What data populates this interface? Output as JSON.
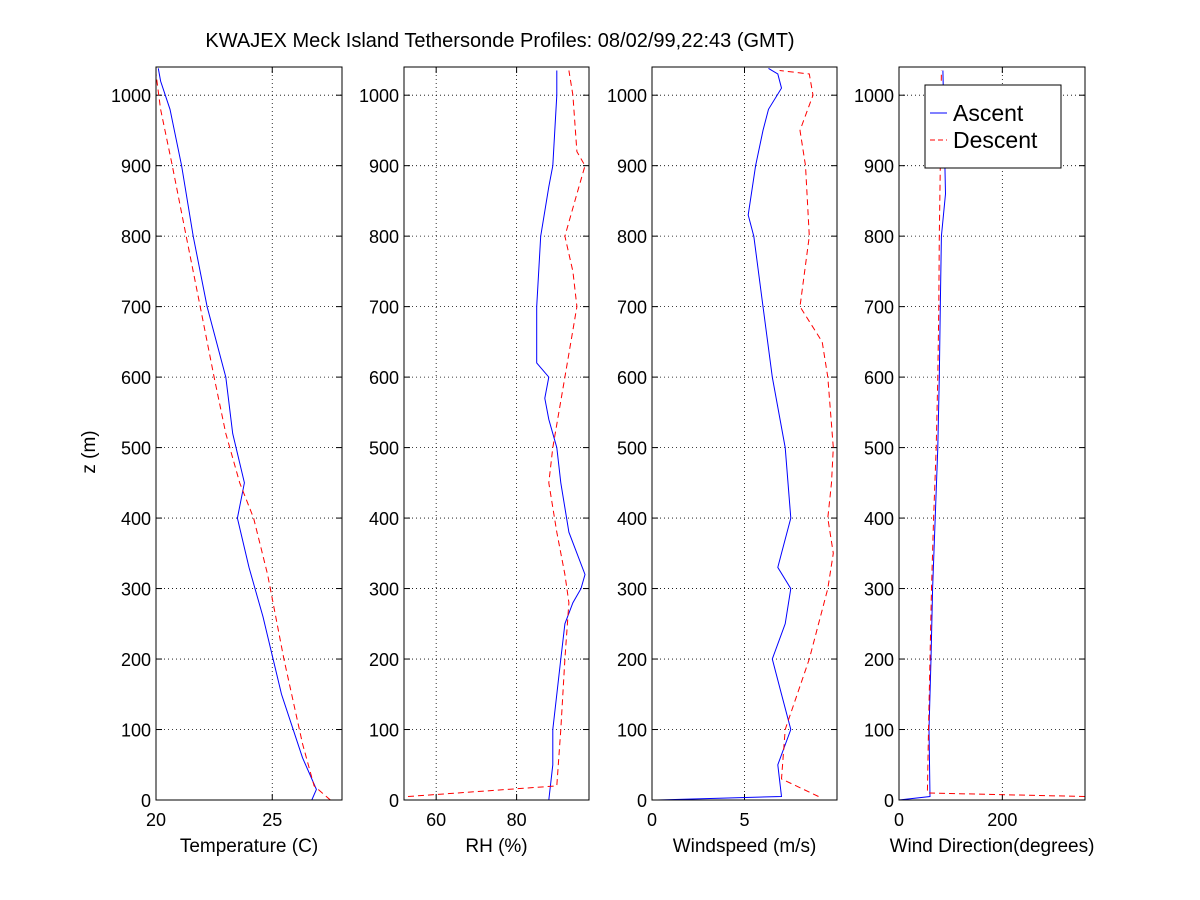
{
  "figure": {
    "title": "KWAJEX Meck Island Tethersonde Profiles: 08/02/99,22:43 (GMT)",
    "ylabel": "z (m)"
  },
  "colors": {
    "ascent": "#0000ff",
    "descent": "#ff0000",
    "axes": "#000000",
    "grid": "#000000"
  },
  "chart_data": [
    {
      "type": "line",
      "xlabel": "Temperature (C)",
      "xlim": [
        20,
        28
      ],
      "ylim": [
        0,
        1040
      ],
      "xticks": [
        20,
        25
      ],
      "yticks": [
        0,
        100,
        200,
        300,
        400,
        500,
        600,
        700,
        800,
        900,
        1000
      ],
      "grid": true,
      "series": [
        {
          "name": "Ascent",
          "style": "solid",
          "x": [
            26.7,
            26.9,
            26.3,
            25.4,
            24.6,
            24.0,
            23.5,
            23.8,
            23.3,
            23.0,
            22.2,
            21.6,
            21.1,
            20.6,
            20.2,
            20.1
          ],
          "y": [
            0,
            15,
            60,
            150,
            260,
            330,
            400,
            450,
            520,
            600,
            700,
            800,
            900,
            980,
            1020,
            1038
          ]
        },
        {
          "name": "Descent",
          "style": "dashed",
          "x": [
            27.5,
            26.8,
            26.3,
            25.5,
            24.8,
            24.2,
            23.6,
            23.0,
            22.5,
            21.9,
            21.3,
            20.7,
            20.2,
            20.0
          ],
          "y": [
            0,
            20,
            80,
            200,
            320,
            400,
            450,
            520,
            600,
            700,
            800,
            900,
            980,
            1030
          ]
        }
      ]
    },
    {
      "type": "line",
      "xlabel": "RH (%)",
      "xlim": [
        52,
        98
      ],
      "ylim": [
        0,
        1040
      ],
      "xticks": [
        60,
        80
      ],
      "yticks": [
        0,
        100,
        200,
        300,
        400,
        500,
        600,
        700,
        800,
        900,
        1000
      ],
      "grid": true,
      "series": [
        {
          "name": "Ascent",
          "style": "solid",
          "x": [
            88,
            89,
            89,
            90,
            91,
            92,
            94,
            96,
            97,
            93,
            91,
            90,
            88,
            87,
            88,
            85,
            85,
            86,
            88,
            89,
            90,
            90
          ],
          "y": [
            0,
            50,
            100,
            150,
            200,
            250,
            280,
            300,
            320,
            380,
            450,
            500,
            540,
            570,
            600,
            620,
            700,
            800,
            870,
            900,
            1000,
            1035
          ]
        },
        {
          "name": "Descent",
          "style": "dashed",
          "x": [
            53,
            90,
            91,
            92,
            93,
            92,
            90,
            88,
            89,
            92,
            95,
            94,
            92,
            95,
            97,
            95,
            94,
            93
          ],
          "y": [
            5,
            20,
            100,
            200,
            280,
            320,
            380,
            450,
            500,
            600,
            700,
            750,
            800,
            860,
            900,
            920,
            1000,
            1035
          ]
        }
      ]
    },
    {
      "type": "line",
      "xlabel": "Windspeed (m/s)",
      "xlim": [
        0,
        10
      ],
      "ylim": [
        0,
        1040
      ],
      "xticks": [
        0,
        5
      ],
      "yticks": [
        0,
        100,
        200,
        300,
        400,
        500,
        600,
        700,
        800,
        900,
        1000
      ],
      "grid": true,
      "series": [
        {
          "name": "Ascent",
          "style": "solid",
          "x": [
            0.3,
            7.0,
            6.8,
            7.5,
            7.0,
            6.5,
            7.2,
            7.5,
            6.8,
            7.0,
            7.5,
            7.2,
            6.5,
            6.0,
            5.5,
            5.2,
            5.6,
            6.0,
            6.3,
            7.0,
            6.8,
            6.3
          ],
          "y": [
            0,
            5,
            50,
            100,
            150,
            200,
            250,
            300,
            330,
            350,
            400,
            500,
            600,
            700,
            800,
            830,
            900,
            950,
            980,
            1010,
            1030,
            1038
          ]
        },
        {
          "name": "Descent",
          "style": "dashed",
          "x": [
            9.0,
            7.0,
            7.2,
            8.5,
            9.5,
            9.8,
            9.5,
            9.7,
            9.8,
            9.5,
            9.2,
            8.0,
            8.5,
            8.3,
            8.0,
            8.7,
            8.5,
            6.9
          ],
          "y": [
            5,
            30,
            100,
            200,
            300,
            350,
            400,
            450,
            500,
            600,
            650,
            700,
            800,
            900,
            950,
            1000,
            1030,
            1035
          ]
        }
      ]
    },
    {
      "type": "line",
      "xlabel": "Wind Direction(degrees)",
      "xlim": [
        0,
        360
      ],
      "ylim": [
        0,
        1040
      ],
      "xticks": [
        0,
        200
      ],
      "yticks": [
        0,
        100,
        200,
        300,
        400,
        500,
        600,
        700,
        800,
        900,
        1000
      ],
      "grid": true,
      "legend": {
        "entries": [
          "Ascent",
          "Descent"
        ],
        "position": "top-right"
      },
      "series": [
        {
          "name": "Ascent",
          "style": "solid",
          "x": [
            0,
            60,
            58,
            62,
            65,
            70,
            75,
            78,
            80,
            82,
            90,
            85
          ],
          "y": [
            0,
            5,
            100,
            200,
            300,
            400,
            500,
            600,
            700,
            800,
            860,
            1035
          ]
        },
        {
          "name": "Descent",
          "style": "dashed",
          "x": [
            360,
            55,
            57,
            60,
            63,
            67,
            72,
            75,
            77,
            78,
            80,
            82
          ],
          "y": [
            5,
            10,
            100,
            200,
            300,
            400,
            500,
            600,
            700,
            800,
            900,
            1035
          ]
        }
      ]
    }
  ]
}
